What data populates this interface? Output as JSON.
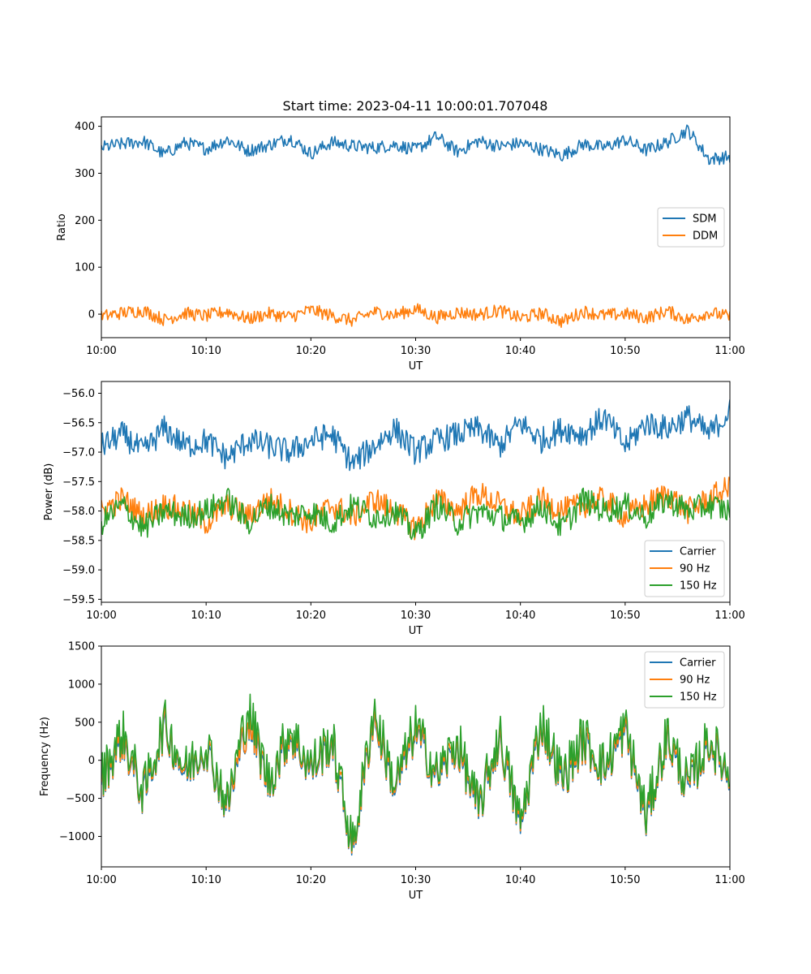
{
  "title": "Start time: 2023-04-11 10:00:01.707048",
  "colors": {
    "blue": "#1f77b4",
    "orange": "#ff7f0e",
    "green": "#2ca02c"
  },
  "chart_data": [
    {
      "type": "line",
      "xlabel": "UT",
      "ylabel": "Ratio",
      "xlim": [
        0,
        60
      ],
      "ylim": [
        -50,
        420
      ],
      "xticks": [
        0,
        10,
        20,
        30,
        40,
        50,
        60
      ],
      "xtick_labels": [
        "10:00",
        "10:10",
        "10:20",
        "10:30",
        "10:40",
        "10:50",
        "11:00"
      ],
      "yticks": [
        0,
        100,
        200,
        300,
        400
      ],
      "ytick_labels": [
        "0",
        "100",
        "200",
        "300",
        "400"
      ],
      "legend": "center right",
      "x": [
        0,
        2,
        4,
        6,
        8,
        10,
        12,
        14,
        16,
        18,
        20,
        22,
        24,
        26,
        28,
        30,
        32,
        34,
        36,
        38,
        40,
        42,
        44,
        46,
        48,
        50,
        52,
        54,
        56,
        58,
        60
      ],
      "series": [
        {
          "name": "SDM",
          "color": "#1f77b4",
          "values": [
            355,
            362,
            368,
            340,
            365,
            352,
            372,
            348,
            360,
            375,
            342,
            366,
            358,
            354,
            361,
            350,
            378,
            346,
            369,
            357,
            364,
            351,
            338,
            362,
            355,
            371,
            349,
            366,
            392,
            330,
            335
          ]
        },
        {
          "name": "DDM",
          "color": "#ff7f0e",
          "values": [
            -5,
            3,
            8,
            -12,
            2,
            -4,
            6,
            -10,
            1,
            -6,
            9,
            -3,
            -14,
            5,
            -2,
            11,
            -7,
            4,
            -1,
            8,
            -9,
            2,
            -16,
            6,
            -3,
            1,
            -8,
            7,
            -12,
            4,
            -6
          ]
        }
      ]
    },
    {
      "type": "line",
      "xlabel": "UT",
      "ylabel": "Power (dB)",
      "xlim": [
        0,
        60
      ],
      "ylim": [
        -59.55,
        -55.8
      ],
      "xticks": [
        0,
        10,
        20,
        30,
        40,
        50,
        60
      ],
      "xtick_labels": [
        "10:00",
        "10:10",
        "10:20",
        "10:30",
        "10:40",
        "10:50",
        "11:00"
      ],
      "yticks": [
        -59.5,
        -59.0,
        -58.5,
        -58.0,
        -57.5,
        -57.0,
        -56.5,
        -56.0
      ],
      "ytick_labels": [
        "−59.5",
        "−59.0",
        "−58.5",
        "−58.0",
        "−57.5",
        "−57.0",
        "−56.5",
        "−56.0"
      ],
      "legend": "lower right",
      "x": [
        0,
        2,
        4,
        6,
        8,
        10,
        12,
        14,
        16,
        18,
        20,
        22,
        24,
        26,
        28,
        30,
        32,
        34,
        36,
        38,
        40,
        42,
        44,
        46,
        48,
        50,
        52,
        54,
        56,
        58,
        60
      ],
      "series": [
        {
          "name": "Carrier",
          "color": "#1f77b4",
          "values": [
            -56.9,
            -56.7,
            -57.0,
            -56.6,
            -56.9,
            -56.8,
            -57.1,
            -56.8,
            -56.9,
            -57.0,
            -56.8,
            -56.7,
            -57.2,
            -56.9,
            -56.6,
            -57.0,
            -56.8,
            -56.7,
            -56.6,
            -56.9,
            -56.5,
            -56.8,
            -56.6,
            -56.7,
            -56.4,
            -56.9,
            -56.5,
            -56.6,
            -56.4,
            -56.7,
            -56.3
          ]
        },
        {
          "name": "90 Hz",
          "color": "#ff7f0e",
          "values": [
            -58.0,
            -57.8,
            -58.1,
            -57.9,
            -58.0,
            -58.2,
            -57.9,
            -58.1,
            -57.8,
            -58.0,
            -58.2,
            -57.9,
            -58.1,
            -57.8,
            -58.0,
            -58.3,
            -57.8,
            -58.0,
            -57.7,
            -57.9,
            -58.1,
            -57.8,
            -58.0,
            -57.9,
            -57.8,
            -58.1,
            -57.9,
            -57.7,
            -58.0,
            -57.8,
            -57.6
          ]
        },
        {
          "name": "150 Hz",
          "color": "#2ca02c",
          "values": [
            -58.2,
            -57.9,
            -58.3,
            -58.0,
            -58.1,
            -58.0,
            -57.8,
            -58.2,
            -57.9,
            -58.1,
            -58.0,
            -58.2,
            -57.9,
            -58.1,
            -58.0,
            -58.4,
            -57.9,
            -58.2,
            -58.0,
            -58.1,
            -58.2,
            -57.9,
            -58.3,
            -57.8,
            -58.0,
            -57.9,
            -58.1,
            -57.8,
            -58.0,
            -57.9,
            -58.0
          ]
        }
      ]
    },
    {
      "type": "line",
      "xlabel": "UT",
      "ylabel": "Frequency (Hz)",
      "xlim": [
        0,
        60
      ],
      "ylim": [
        -1400,
        1500
      ],
      "xticks": [
        0,
        10,
        20,
        30,
        40,
        50,
        60
      ],
      "xtick_labels": [
        "10:00",
        "10:10",
        "10:20",
        "10:30",
        "10:40",
        "10:50",
        "11:00"
      ],
      "yticks": [
        -1000,
        -500,
        0,
        500,
        1000,
        1500
      ],
      "ytick_labels": [
        "−1000",
        "−500",
        "0",
        "500",
        "1000",
        "1500"
      ],
      "legend": "upper right",
      "x": [
        0,
        2,
        4,
        6,
        8,
        10,
        12,
        14,
        16,
        18,
        20,
        22,
        24,
        26,
        28,
        30,
        32,
        34,
        36,
        38,
        40,
        42,
        44,
        46,
        48,
        50,
        52,
        54,
        56,
        58,
        60
      ],
      "series": [
        {
          "name": "Carrier",
          "color": "#1f77b4",
          "values": [
            -300,
            250,
            -500,
            400,
            -200,
            150,
            -650,
            500,
            -350,
            300,
            -150,
            200,
            -1200,
            550,
            -400,
            350,
            -250,
            150,
            -700,
            250,
            -900,
            450,
            -300,
            200,
            -150,
            350,
            -800,
            250,
            -400,
            200,
            -250
          ]
        },
        {
          "name": "90 Hz",
          "color": "#ff7f0e",
          "values": [
            -260,
            290,
            -460,
            440,
            -160,
            190,
            -610,
            540,
            -310,
            340,
            -110,
            240,
            -1160,
            590,
            -360,
            390,
            -210,
            190,
            -660,
            290,
            -860,
            490,
            -260,
            240,
            -110,
            390,
            -760,
            290,
            -360,
            240,
            -210
          ]
        },
        {
          "name": "150 Hz",
          "color": "#2ca02c",
          "values": [
            -220,
            380,
            -420,
            500,
            -120,
            240,
            -570,
            700,
            -270,
            420,
            -70,
            300,
            -1120,
            680,
            -320,
            460,
            -170,
            260,
            -620,
            360,
            -820,
            560,
            -220,
            320,
            -70,
            460,
            -720,
            360,
            -320,
            300,
            -170
          ]
        }
      ]
    }
  ]
}
